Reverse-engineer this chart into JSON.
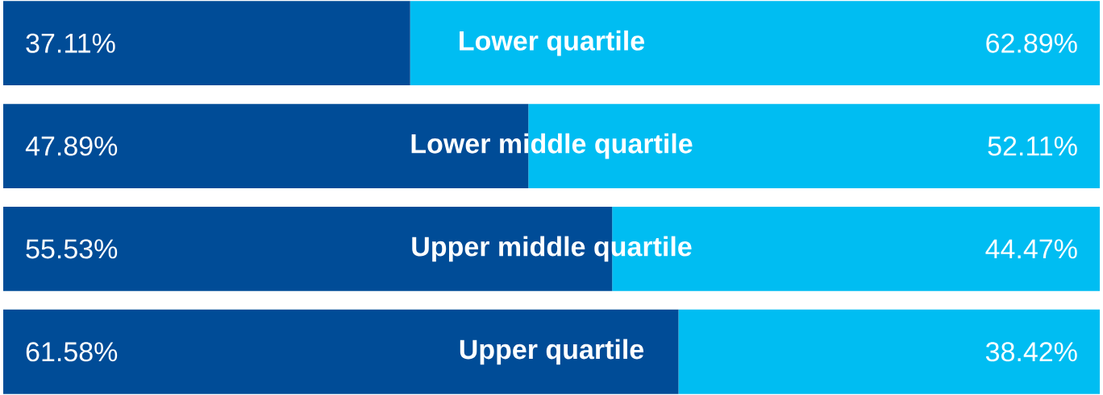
{
  "chart_data": {
    "type": "bar",
    "orientation": "horizontal",
    "stacked": true,
    "categories": [
      "Lower quartile",
      "Lower middle quartile",
      "Upper middle quartile",
      "Upper quartile"
    ],
    "series": [
      {
        "color": "#004c97",
        "values": [
          37.11,
          47.89,
          55.53,
          61.58
        ],
        "value_labels": [
          "37.11%",
          "47.89%",
          "55.53%",
          "61.58%"
        ]
      },
      {
        "color": "#00bdf2",
        "values": [
          62.89,
          52.11,
          44.47,
          38.42
        ],
        "value_labels": [
          "62.89%",
          "52.11%",
          "44.47%",
          "38.42%"
        ]
      }
    ]
  }
}
